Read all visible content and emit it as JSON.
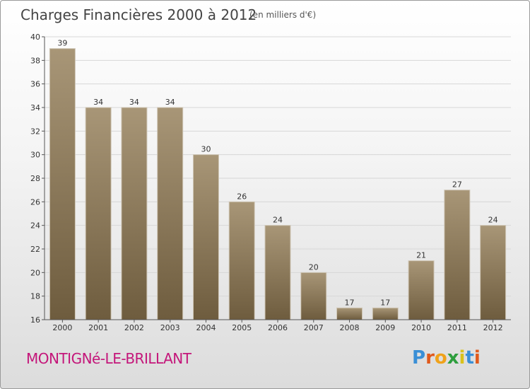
{
  "header": {
    "title": "Charges Financières 2000 à 2012",
    "subtitle": "(en milliers d'€)"
  },
  "footer": {
    "place": "MONTIGNé-LE-BRILLANT",
    "logo_text": "Proxiti",
    "logo_letters": [
      {
        "ch": "P",
        "color": "#3a8fd6"
      },
      {
        "ch": "r",
        "color": "#e05a1c"
      },
      {
        "ch": "o",
        "color": "#f0a21a"
      },
      {
        "ch": "x",
        "color": "#2e9e3e"
      },
      {
        "ch": "i",
        "color": "#d9c11a"
      },
      {
        "ch": "t",
        "color": "#3a8fd6"
      },
      {
        "ch": "i",
        "color": "#e05a1c"
      }
    ]
  },
  "colors": {
    "bar_top": "#a89677",
    "bar_bottom": "#6e5c3e",
    "grid": "#d7d7d7",
    "axis": "#555555"
  },
  "chart_data": {
    "type": "bar",
    "title": "Charges Financières 2000 à 2012",
    "subtitle": "(en milliers d'€)",
    "categories": [
      "2000",
      "2001",
      "2002",
      "2003",
      "2004",
      "2005",
      "2006",
      "2007",
      "2008",
      "2009",
      "2010",
      "2011",
      "2012"
    ],
    "values": [
      39,
      34,
      34,
      34,
      30,
      26,
      24,
      20,
      17,
      17,
      21,
      27,
      24
    ],
    "ylim": [
      16,
      40
    ],
    "yticks": [
      16,
      18,
      20,
      22,
      24,
      26,
      28,
      30,
      32,
      34,
      36,
      38,
      40
    ],
    "grid": true,
    "xlabel": "",
    "ylabel": ""
  }
}
